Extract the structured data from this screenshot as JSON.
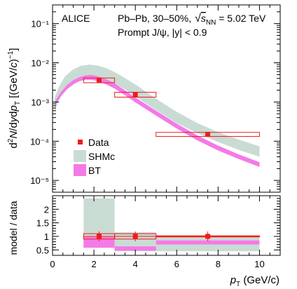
{
  "chart_data": [
    {
      "type": "scatter",
      "experiment": "ALICE",
      "system_label": "Pb–Pb, 30–50%,",
      "energy_label": "s",
      "energy_sub": "NN",
      "energy_value": " = 5.02 TeV",
      "particle_label": "Prompt J/ψ, |y| < 0.9",
      "ylabel": "d²N/dydp_T [(GeV/c)⁻¹]",
      "yscale": "log",
      "ylim": [
        5e-06,
        0.3
      ],
      "xlim": [
        0,
        11
      ],
      "ytick_labels": [
        "10⁻⁵",
        "10⁻⁴",
        "10⁻³",
        "10⁻²",
        "10⁻¹"
      ],
      "legend_position": "lower-left",
      "legend": [
        {
          "label": "Data",
          "color": "#ee1c1c",
          "style": "marker"
        },
        {
          "label": "SHMc",
          "color": "#c9dcd4",
          "style": "band"
        },
        {
          "label": "BT",
          "color": "#f47ae6",
          "style": "band"
        }
      ],
      "data_points": [
        {
          "x": 2.25,
          "x_low": 1.5,
          "x_high": 3.0,
          "y": 0.0036,
          "sys_low": 0.0031,
          "sys_high": 0.0041
        },
        {
          "x": 4.0,
          "x_low": 3.0,
          "x_high": 5.0,
          "y": 0.00155,
          "sys_low": 0.00133,
          "sys_high": 0.00177
        },
        {
          "x": 7.5,
          "x_low": 5.0,
          "x_high": 10.0,
          "y": 0.00015,
          "sys_low": 0.000132,
          "sys_high": 0.000168
        }
      ],
      "series": [
        {
          "name": "SHMc",
          "color": "#c9dcd4",
          "x": [
            0.1,
            0.3,
            0.6,
            1.0,
            1.4,
            1.8,
            2.2,
            2.6,
            3.0,
            3.5,
            4.0,
            5.0,
            6.0,
            7.0,
            8.0,
            9.0,
            10.0
          ],
          "y_low": [
            0.0006,
            0.0011,
            0.002,
            0.0032,
            0.0042,
            0.0045,
            0.0043,
            0.0037,
            0.003,
            0.0021,
            0.0014,
            0.00062,
            0.00029,
            0.00016,
            9.5e-05,
            6e-05,
            4e-05
          ],
          "y_high": [
            0.0013,
            0.0024,
            0.0045,
            0.0068,
            0.0085,
            0.009,
            0.0085,
            0.0073,
            0.0058,
            0.0041,
            0.0028,
            0.00122,
            0.00056,
            0.00029,
            0.00017,
            0.00011,
            7.4e-05
          ]
        },
        {
          "name": "BT",
          "color": "#f47ae6",
          "x": [
            0.15,
            0.4,
            0.7,
            1.0,
            1.3,
            1.6,
            1.9,
            2.2,
            2.6,
            3.0,
            3.5,
            4.0,
            5.0,
            6.0,
            7.0,
            8.0,
            9.0,
            10.0
          ],
          "y_low": [
            0.00085,
            0.0014,
            0.0021,
            0.0028,
            0.0034,
            0.0037,
            0.0037,
            0.0034,
            0.0028,
            0.0022,
            0.0015,
            0.00098,
            0.00045,
            0.00021,
            0.000105,
            5.8e-05,
            3.5e-05,
            2.2e-05
          ],
          "y_high": [
            0.0011,
            0.0018,
            0.0027,
            0.0036,
            0.0043,
            0.0048,
            0.0049,
            0.0045,
            0.0038,
            0.003,
            0.002,
            0.00131,
            0.0006,
            0.00028,
            0.00014,
            7.7e-05,
            4.6e-05,
            2.9e-05
          ]
        }
      ]
    },
    {
      "type": "bar",
      "ylabel": "model / data",
      "xlabel_main": "p",
      "xlabel_sub": "T",
      "xlabel_unit": " (GeV/c)",
      "xlim": [
        0,
        11
      ],
      "ylim": [
        0.3,
        2.5
      ],
      "yticks": [
        "0.5",
        "1",
        "1.5",
        "2"
      ],
      "xticks": [
        "0",
        "2",
        "4",
        "6",
        "8",
        "10"
      ],
      "reference_line": 1,
      "data_ratio": [
        {
          "x": 2.25,
          "x_low": 1.5,
          "x_high": 3.0,
          "y": 1.0,
          "sys_low": 0.9,
          "sys_high": 1.1
        },
        {
          "x": 4.0,
          "x_low": 3.0,
          "x_high": 5.0,
          "y": 1.0,
          "sys_low": 0.9,
          "sys_high": 1.1
        },
        {
          "x": 7.5,
          "x_low": 5.0,
          "x_high": 10.0,
          "y": 1.0,
          "sys_low": 0.98,
          "sys_high": 1.02
        }
      ],
      "series": [
        {
          "name": "SHMc",
          "color": "#c9dcd4",
          "bins": [
            {
              "x_low": 1.5,
              "x_high": 3.0,
              "low": 0.77,
              "high": 2.4
            },
            {
              "x_low": 3.0,
              "x_high": 5.0,
              "low": 0.45,
              "high": 1.15
            },
            {
              "x_low": 5.0,
              "x_high": 10.0,
              "low": 0.45,
              "high": 0.98
            }
          ]
        },
        {
          "name": "BT",
          "color": "#f47ae6",
          "bins": [
            {
              "x_low": 1.5,
              "x_high": 3.0,
              "low": 0.58,
              "high": 0.98
            },
            {
              "x_low": 3.0,
              "x_high": 5.0,
              "low": 0.47,
              "high": 0.63
            },
            {
              "x_low": 5.0,
              "x_high": 10.0,
              "low": 0.7,
              "high": 0.85
            }
          ]
        }
      ]
    }
  ]
}
